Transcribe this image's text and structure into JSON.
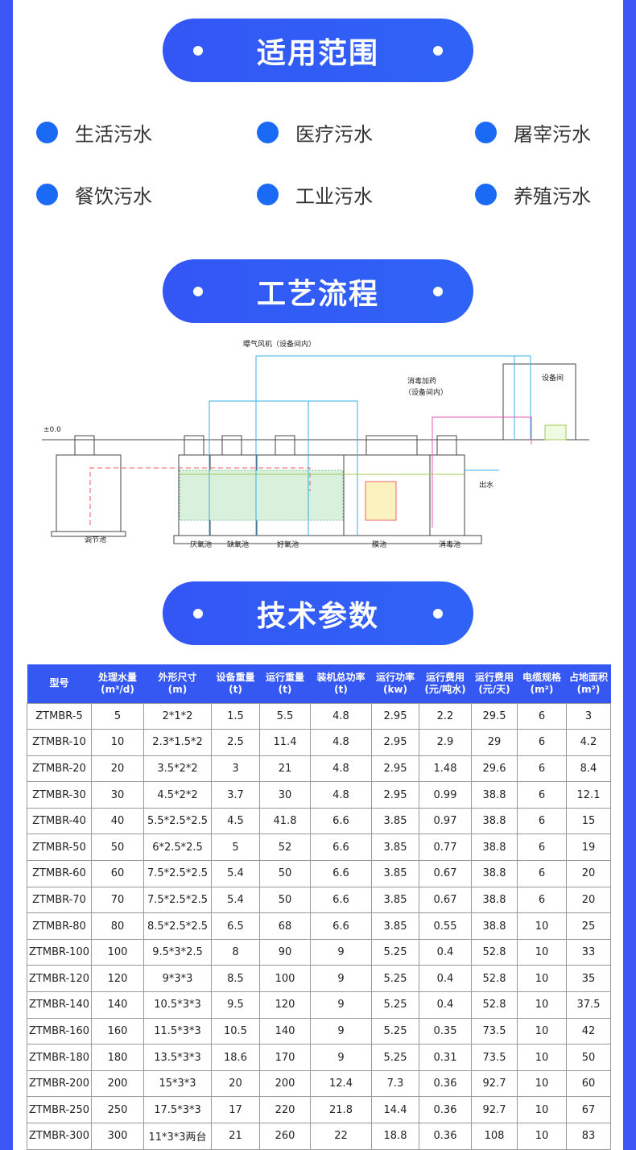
{
  "sections": {
    "scope": "适用范围",
    "process": "工艺流程",
    "params": "技术参数"
  },
  "scope_items": [
    "生活污水",
    "医疗污水",
    "屠宰污水",
    "餐饮污水",
    "工业污水",
    "养殖污水"
  ],
  "diagram": {
    "blower": "曝气风机（设备间内）",
    "dosing1": "消毒加药",
    "dosing2": "（设备间内）",
    "room": "设备间",
    "level": "±0.0",
    "outlet": "出水",
    "tanks": [
      "调节池",
      "厌氧池",
      "缺氧池",
      "好氧池",
      "膜池",
      "消毒池"
    ]
  },
  "table": {
    "headers": [
      [
        "型号",
        ""
      ],
      [
        "处理水量",
        "(m³/d)"
      ],
      [
        "外形尺寸",
        "(m)"
      ],
      [
        "设备重量",
        "(t)"
      ],
      [
        "运行重量",
        "(t)"
      ],
      [
        "装机总功率",
        "(t)"
      ],
      [
        "运行功率",
        "(kw)"
      ],
      [
        "运行费用",
        "(元/吨水)"
      ],
      [
        "运行费用",
        "(元/天)"
      ],
      [
        "电缆规格",
        "(m²)"
      ],
      [
        "占地面积",
        "(m²)"
      ]
    ],
    "rows": [
      [
        "ZTMBR-5",
        "5",
        "2*1*2",
        "1.5",
        "5.5",
        "4.8",
        "2.95",
        "2.2",
        "29.5",
        "6",
        "3"
      ],
      [
        "ZTMBR-10",
        "10",
        "2.3*1.5*2",
        "2.5",
        "11.4",
        "4.8",
        "2.95",
        "2.9",
        "29",
        "6",
        "4.2"
      ],
      [
        "ZTMBR-20",
        "20",
        "3.5*2*2",
        "3",
        "21",
        "4.8",
        "2.95",
        "1.48",
        "29.6",
        "6",
        "8.4"
      ],
      [
        "ZTMBR-30",
        "30",
        "4.5*2*2",
        "3.7",
        "30",
        "4.8",
        "2.95",
        "0.99",
        "38.8",
        "6",
        "12.1"
      ],
      [
        "ZTMBR-40",
        "40",
        "5.5*2.5*2.5",
        "4.5",
        "41.8",
        "6.6",
        "3.85",
        "0.97",
        "38.8",
        "6",
        "15"
      ],
      [
        "ZTMBR-50",
        "50",
        "6*2.5*2.5",
        "5",
        "52",
        "6.6",
        "3.85",
        "0.77",
        "38.8",
        "6",
        "19"
      ],
      [
        "ZTMBR-60",
        "60",
        "7.5*2.5*2.5",
        "5.4",
        "50",
        "6.6",
        "3.85",
        "0.67",
        "38.8",
        "6",
        "20"
      ],
      [
        "ZTMBR-70",
        "70",
        "7.5*2.5*2.5",
        "5.4",
        "50",
        "6.6",
        "3.85",
        "0.67",
        "38.8",
        "6",
        "20"
      ],
      [
        "ZTMBR-80",
        "80",
        "8.5*2.5*2.5",
        "6.5",
        "68",
        "6.6",
        "3.85",
        "0.55",
        "38.8",
        "10",
        "25"
      ],
      [
        "ZTMBR-100",
        "100",
        "9.5*3*2.5",
        "8",
        "90",
        "9",
        "5.25",
        "0.4",
        "52.8",
        "10",
        "33"
      ],
      [
        "ZTMBR-120",
        "120",
        "9*3*3",
        "8.5",
        "100",
        "9",
        "5.25",
        "0.4",
        "52.8",
        "10",
        "35"
      ],
      [
        "ZTMBR-140",
        "140",
        "10.5*3*3",
        "9.5",
        "120",
        "9",
        "5.25",
        "0.4",
        "52.8",
        "10",
        "37.5"
      ],
      [
        "ZTMBR-160",
        "160",
        "11.5*3*3",
        "10.5",
        "140",
        "9",
        "5.25",
        "0.35",
        "73.5",
        "10",
        "42"
      ],
      [
        "ZTMBR-180",
        "180",
        "13.5*3*3",
        "18.6",
        "170",
        "9",
        "5.25",
        "0.31",
        "73.5",
        "10",
        "50"
      ],
      [
        "ZTMBR-200",
        "200",
        "15*3*3",
        "20",
        "200",
        "12.4",
        "7.3",
        "0.36",
        "92.7",
        "10",
        "60"
      ],
      [
        "ZTMBR-250",
        "250",
        "17.5*3*3",
        "17",
        "220",
        "21.8",
        "14.4",
        "0.36",
        "92.7",
        "10",
        "67"
      ],
      [
        "ZTMBR-300",
        "300",
        "11*3*3两台",
        "21",
        "260",
        "22",
        "18.8",
        "0.36",
        "108",
        "10",
        "83"
      ]
    ]
  }
}
